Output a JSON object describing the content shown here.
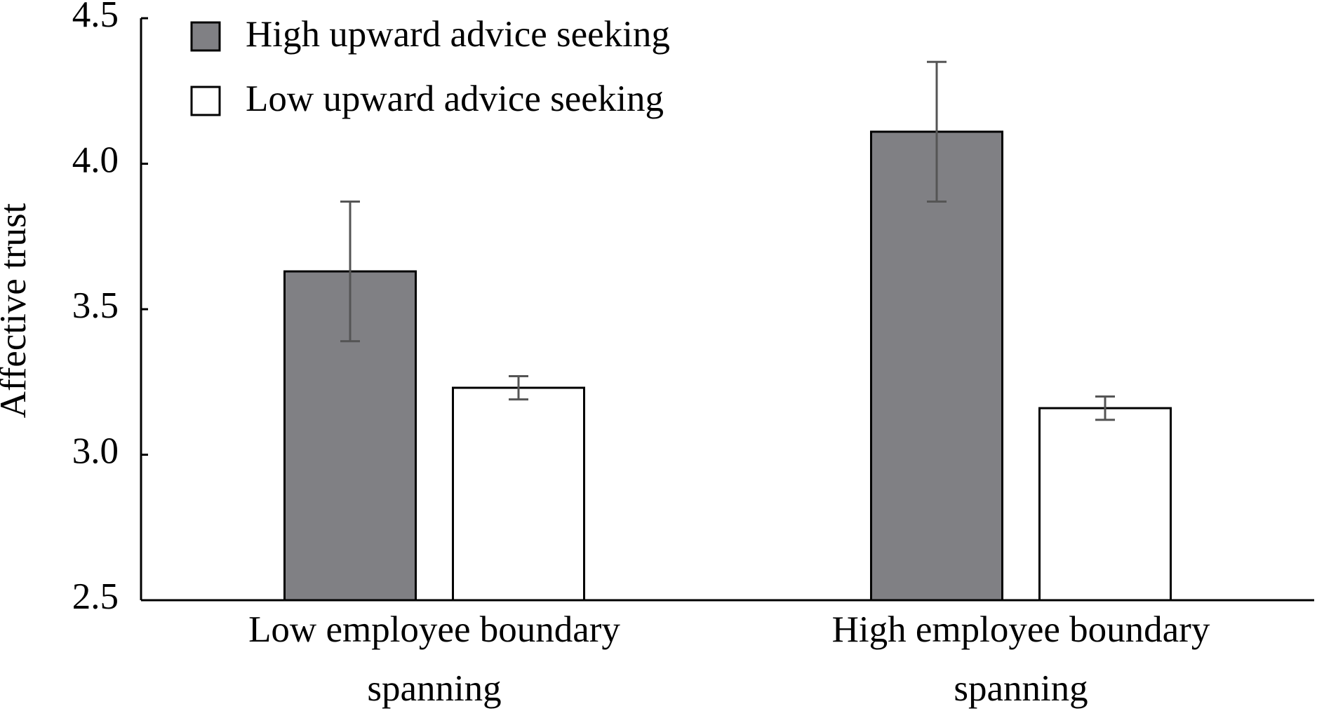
{
  "chart_data": {
    "type": "bar",
    "y_label": "Affective trust",
    "categories": [
      "Low employee boundary spanning",
      "High employee boundary spanning"
    ],
    "series": [
      {
        "name": "High upward advice seeking",
        "color": "#808084",
        "values": [
          3.63,
          4.11
        ],
        "errors": [
          0.24,
          0.24
        ]
      },
      {
        "name": "Low upward advice seeking",
        "color": "#ffffff",
        "values": [
          3.23,
          3.16
        ],
        "errors": [
          0.04,
          0.04
        ]
      }
    ],
    "ylim": [
      2.5,
      4.5
    ],
    "yticks": [
      2.5,
      {
        "value": 3,
        "label": "3.0"
      },
      3.5,
      {
        "value": 4,
        "label": "4.0"
      },
      4.5
    ],
    "grid": false,
    "legend": "upper left"
  }
}
